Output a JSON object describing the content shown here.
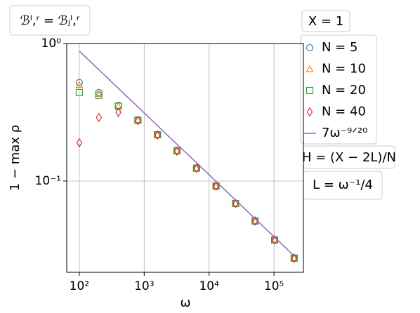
{
  "chart_data": {
    "type": "scatter",
    "title": "ℬˡ,ʳ = ℬⱼˡ,ʳ",
    "x_label": "ω",
    "y_label": "1 − max ρ",
    "x": [
      100,
      200,
      400,
      800,
      1600,
      3200,
      6400,
      12800,
      25600,
      51200,
      102400,
      204800
    ],
    "series": [
      {
        "name": "N = 5",
        "marker": "circle",
        "color": "#1f77b4",
        "values": [
          0.52,
          0.44,
          0.355,
          0.278,
          0.217,
          0.166,
          0.124,
          0.092,
          0.0687,
          0.0512,
          0.0373,
          0.0275
        ]
      },
      {
        "name": "N = 10",
        "marker": "triangle",
        "color": "#ff7f0e",
        "values": [
          0.5,
          0.43,
          0.35,
          0.278,
          0.217,
          0.166,
          0.124,
          0.092,
          0.0687,
          0.0512,
          0.0373,
          0.0275
        ]
      },
      {
        "name": "N = 20",
        "marker": "square",
        "color": "#2ca02c",
        "values": [
          0.44,
          0.42,
          0.35,
          0.277,
          0.217,
          0.166,
          0.124,
          0.092,
          0.0687,
          0.0512,
          0.0373,
          0.0275
        ]
      },
      {
        "name": "N = 40",
        "marker": "diamond",
        "color": "#d62728",
        "values": [
          0.19,
          0.29,
          0.316,
          0.275,
          0.216,
          0.165,
          0.124,
          0.092,
          0.0687,
          0.0512,
          0.0373,
          0.0275
        ]
      },
      {
        "name": "7ω⁻⁹ᐟ²⁰",
        "marker": "line",
        "color": "#9467bd",
        "values": [
          0.881,
          0.645,
          0.472,
          0.346,
          0.253,
          0.185,
          0.136,
          0.0993,
          0.0727,
          0.0532,
          0.039,
          0.0285
        ]
      }
    ],
    "legend_title": "X = 1",
    "annotations": [
      "H = (X − 2L)/N",
      "L = ω⁻¹/4"
    ],
    "log_x": true,
    "log_y": true,
    "grid": true,
    "xlim": [
      64,
      284000
    ],
    "ylim": [
      0.0217,
      1
    ],
    "xticks": [
      {
        "value": 100,
        "label": "10²"
      },
      {
        "value": 1000,
        "label": "10³"
      },
      {
        "value": 10000,
        "label": "10⁴"
      },
      {
        "value": 100000,
        "label": "10⁵"
      }
    ],
    "yticks": [
      {
        "value": 1,
        "label": "10⁰"
      },
      {
        "value": 0.1,
        "label": "10⁻¹"
      }
    ]
  }
}
